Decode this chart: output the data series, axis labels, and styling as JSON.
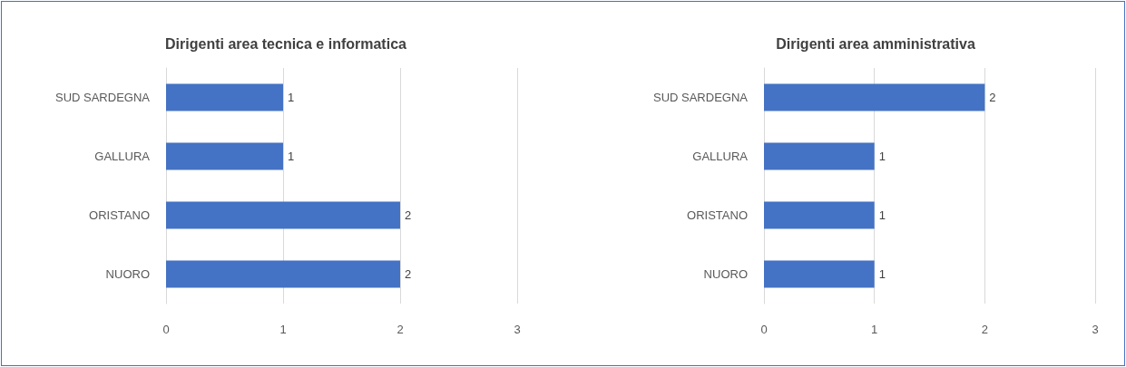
{
  "chart_data": [
    {
      "type": "bar",
      "orientation": "horizontal",
      "title": "Dirigenti area tecnica e informatica",
      "categories": [
        "SUD SARDEGNA",
        "GALLURA",
        "ORISTANO",
        "NUORO"
      ],
      "values": [
        1,
        1,
        2,
        2
      ],
      "color": "#4472c4",
      "xlim": [
        0,
        3
      ],
      "xticks": [
        0,
        1,
        2,
        3
      ],
      "grid": "x",
      "data_labels": true
    },
    {
      "type": "bar",
      "orientation": "horizontal",
      "title": "Dirigenti area amministrativa",
      "categories": [
        "SUD SARDEGNA",
        "GALLURA",
        "ORISTANO",
        "NUORO"
      ],
      "values": [
        2,
        1,
        1,
        1
      ],
      "color": "#4472c4",
      "xlim": [
        0,
        3
      ],
      "xticks": [
        0,
        1,
        2,
        3
      ],
      "grid": "x",
      "data_labels": true
    }
  ]
}
